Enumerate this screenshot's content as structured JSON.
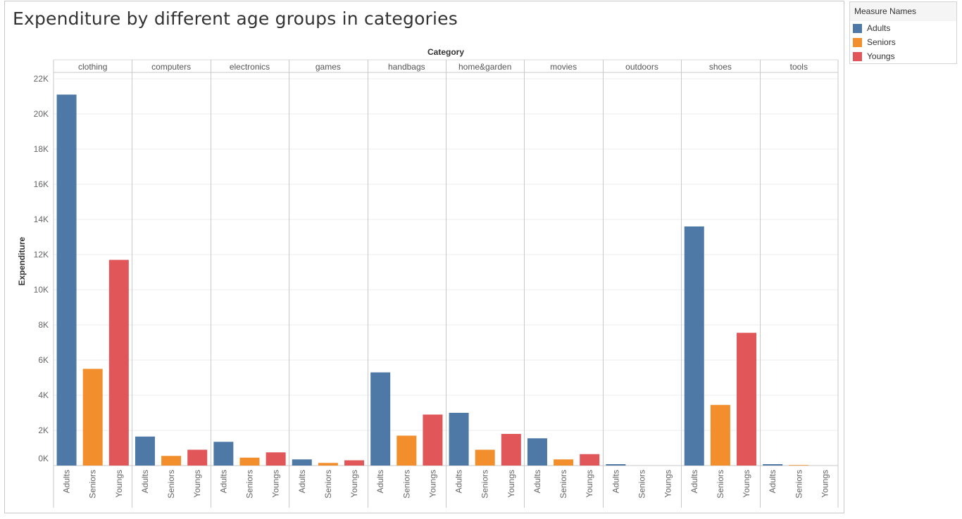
{
  "title": "Expenditure by different age groups in categories",
  "legend": {
    "title": "Measure Names",
    "items": [
      {
        "label": "Adults",
        "color": "#4e79a7"
      },
      {
        "label": "Seniors",
        "color": "#f28e2b"
      },
      {
        "label": "Youngs",
        "color": "#e15759"
      }
    ]
  },
  "chart_data": {
    "type": "bar",
    "title": "Expenditure by different age groups in categories",
    "column_header": "Category",
    "ylabel": "Expenditure",
    "ylim": [
      0,
      22000
    ],
    "yticks": [
      {
        "value": 0,
        "label": "0K"
      },
      {
        "value": 2000,
        "label": "2K"
      },
      {
        "value": 4000,
        "label": "4K"
      },
      {
        "value": 6000,
        "label": "6K"
      },
      {
        "value": 8000,
        "label": "8K"
      },
      {
        "value": 10000,
        "label": "10K"
      },
      {
        "value": 12000,
        "label": "12K"
      },
      {
        "value": 14000,
        "label": "14K"
      },
      {
        "value": 16000,
        "label": "16K"
      },
      {
        "value": 18000,
        "label": "18K"
      },
      {
        "value": 20000,
        "label": "20K"
      },
      {
        "value": 22000,
        "label": "22K"
      }
    ],
    "grid": true,
    "legend_position": "top-right",
    "categories": [
      "clothing",
      "computers",
      "electronics",
      "games",
      "handbags",
      "home&garden",
      "movies",
      "outdoors",
      "shoes",
      "tools"
    ],
    "series": [
      {
        "name": "Adults",
        "color": "#4e79a7",
        "values": [
          21100,
          1650,
          1350,
          350,
          5300,
          3000,
          1550,
          80,
          13600,
          80
        ]
      },
      {
        "name": "Seniors",
        "color": "#f28e2b",
        "values": [
          5500,
          550,
          450,
          150,
          1700,
          900,
          350,
          0,
          3450,
          30
        ]
      },
      {
        "name": "Youngs",
        "color": "#e15759",
        "values": [
          11700,
          900,
          750,
          300,
          2900,
          1800,
          650,
          0,
          7550,
          0
        ]
      }
    ]
  }
}
